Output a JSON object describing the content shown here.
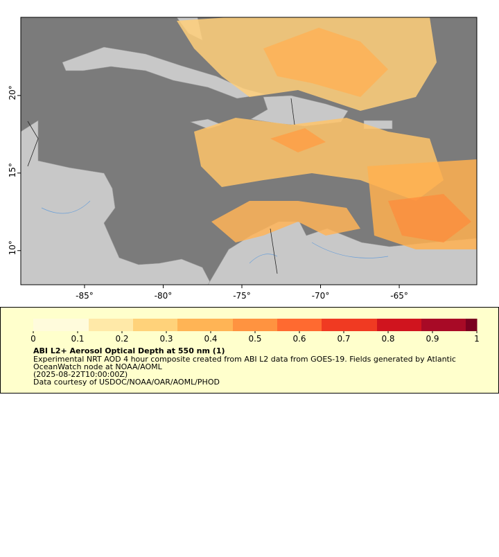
{
  "map": {
    "xlim": [
      -89.05,
      -60.07
    ],
    "ylim": [
      7.8,
      25.04
    ],
    "xticks": [
      {
        "value": -85,
        "label": "-85°"
      },
      {
        "value": -80,
        "label": "-80°"
      },
      {
        "value": -75,
        "label": "-75°"
      },
      {
        "value": -70,
        "label": "-70°"
      },
      {
        "value": -65,
        "label": "-65°"
      }
    ],
    "yticks": [
      {
        "value": 10,
        "label": "10°"
      },
      {
        "value": 15,
        "label": "15°"
      },
      {
        "value": 20,
        "label": "20°"
      }
    ]
  },
  "colorbar": {
    "range": [
      0,
      1
    ],
    "ticks": [
      0,
      0.1,
      0.2,
      0.3,
      0.4,
      0.5,
      0.6,
      0.7,
      0.8,
      0.9,
      1
    ],
    "colors": [
      "#fffbdc",
      "#ffe9a8",
      "#ffd27a",
      "#ffb455",
      "#ff9340",
      "#ff6a30",
      "#f03a22",
      "#d0141e",
      "#a80a26",
      "#7a0020"
    ]
  },
  "legend": {
    "title": "ABI L2+ Aerosol Optical Depth at 550 nm (1)",
    "description": [
      "Experimental NRT AOD 4 hour composite created from ABI L2 data from GOES-19. Fields generated by Atlantic",
      "OceanWatch node at NOAA/AOML"
    ],
    "time": "(2025-08-22T10:00:00Z)",
    "credit": "Data courtesy of USDOC/NOAA/OAR/AOML/PHOD"
  }
}
